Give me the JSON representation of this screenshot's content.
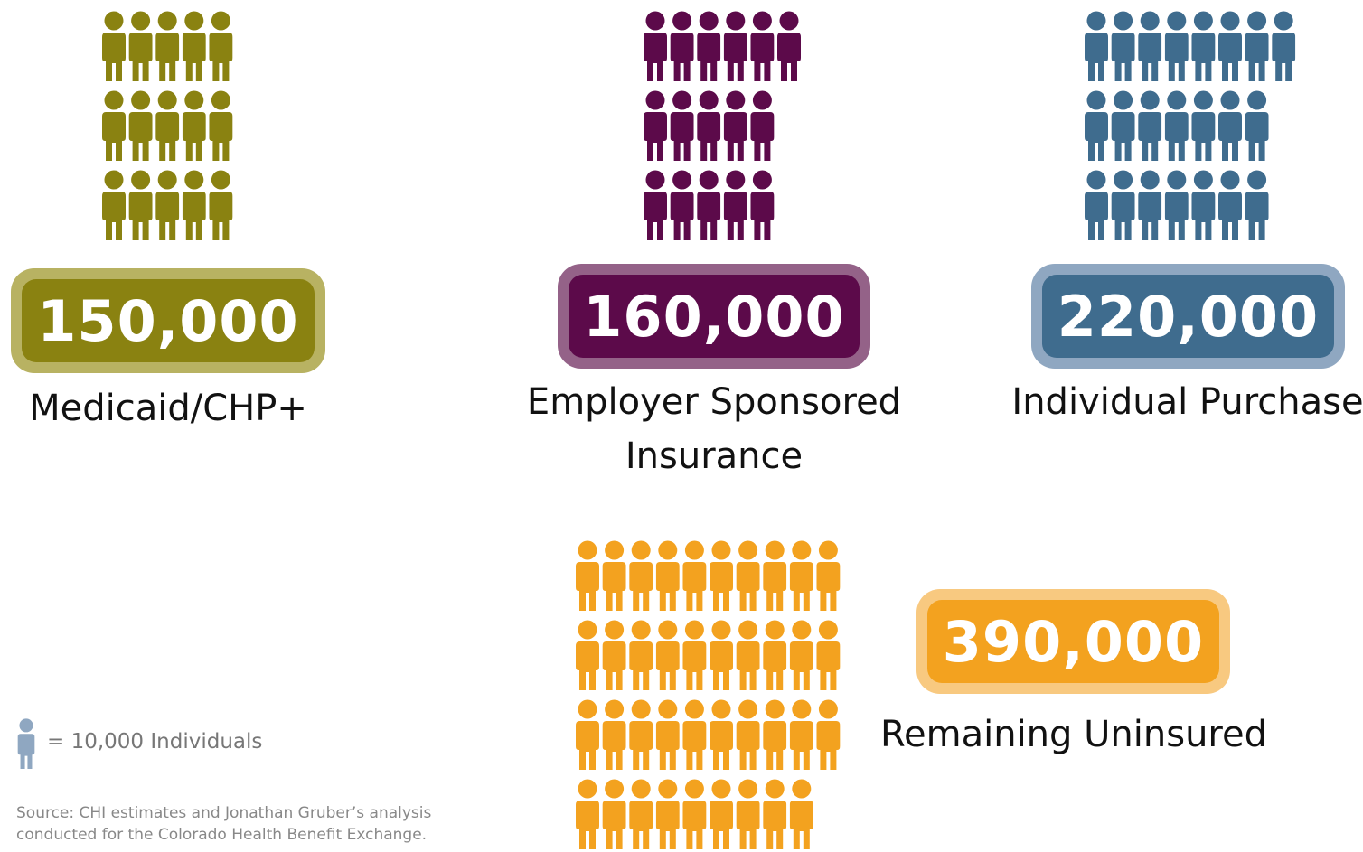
{
  "chart_data": {
    "type": "pictogram",
    "unit": 10000,
    "unit_label": "= 10,000 Individuals",
    "unit_color": "#8fa7c1",
    "series": [
      {
        "name": "Medicaid/CHP+",
        "value": 150000,
        "value_label": "150,000",
        "color": "#8a8211",
        "light_color": "#b8b262"
      },
      {
        "name": "Employer Sponsored Insurance",
        "value": 160000,
        "value_label": "160,000",
        "color": "#5c0a4a",
        "light_color": "#946288"
      },
      {
        "name": "Individual Purchase",
        "value": 220000,
        "value_label": "220,000",
        "color": "#3f6c8e",
        "light_color": "#8fa7c1"
      },
      {
        "name": "Remaining Uninsured",
        "value": 390000,
        "value_label": "390,000",
        "color": "#f3a21f",
        "light_color": "#f8c980"
      }
    ],
    "source": [
      "Source: CHI estimates and Jonathan Gruber’s analysis",
      "conducted for the Colorado Health Benefit Exchange."
    ]
  }
}
